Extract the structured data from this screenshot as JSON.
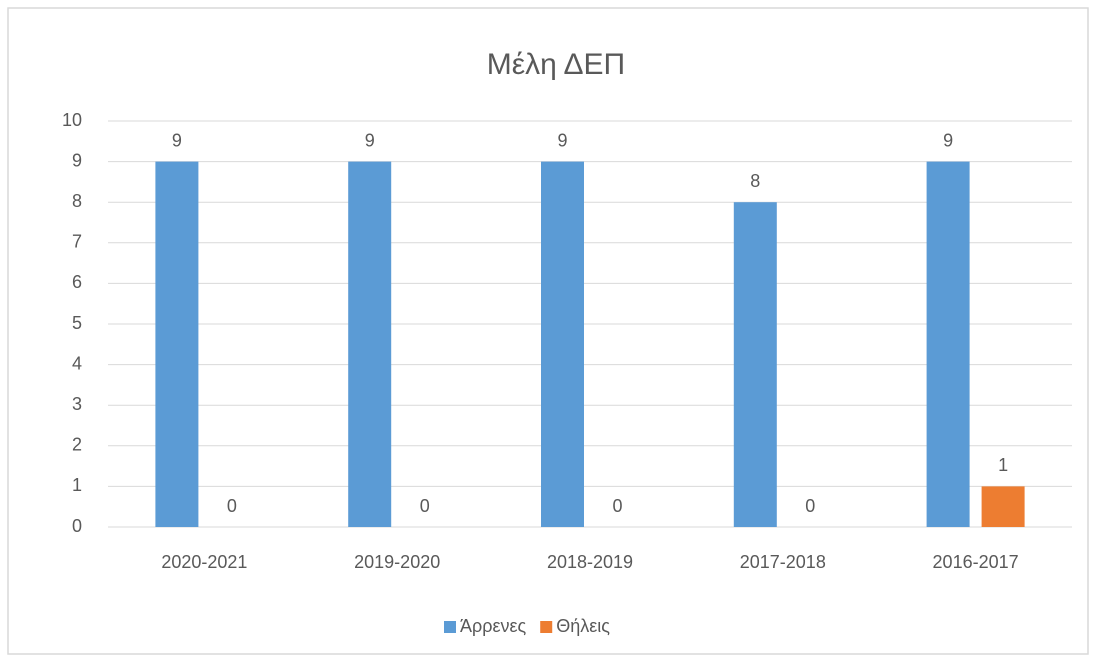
{
  "chart_data": {
    "type": "bar",
    "title": "Μέλη ΔΕΠ",
    "categories": [
      "2020-2021",
      "2019-2020",
      "2018-2019",
      "2017-2018",
      "2016-2017"
    ],
    "series": [
      {
        "name": "Άρρενες",
        "color": "#5b9bd5",
        "values": [
          9,
          9,
          9,
          8,
          9
        ]
      },
      {
        "name": "Θήλεις",
        "color": "#ed7d31",
        "values": [
          0,
          0,
          0,
          0,
          1
        ]
      }
    ],
    "ylim": [
      0,
      10
    ],
    "yticks": [
      0,
      1,
      2,
      3,
      4,
      5,
      6,
      7,
      8,
      9,
      10
    ],
    "grid": true,
    "legend": "bottom"
  }
}
